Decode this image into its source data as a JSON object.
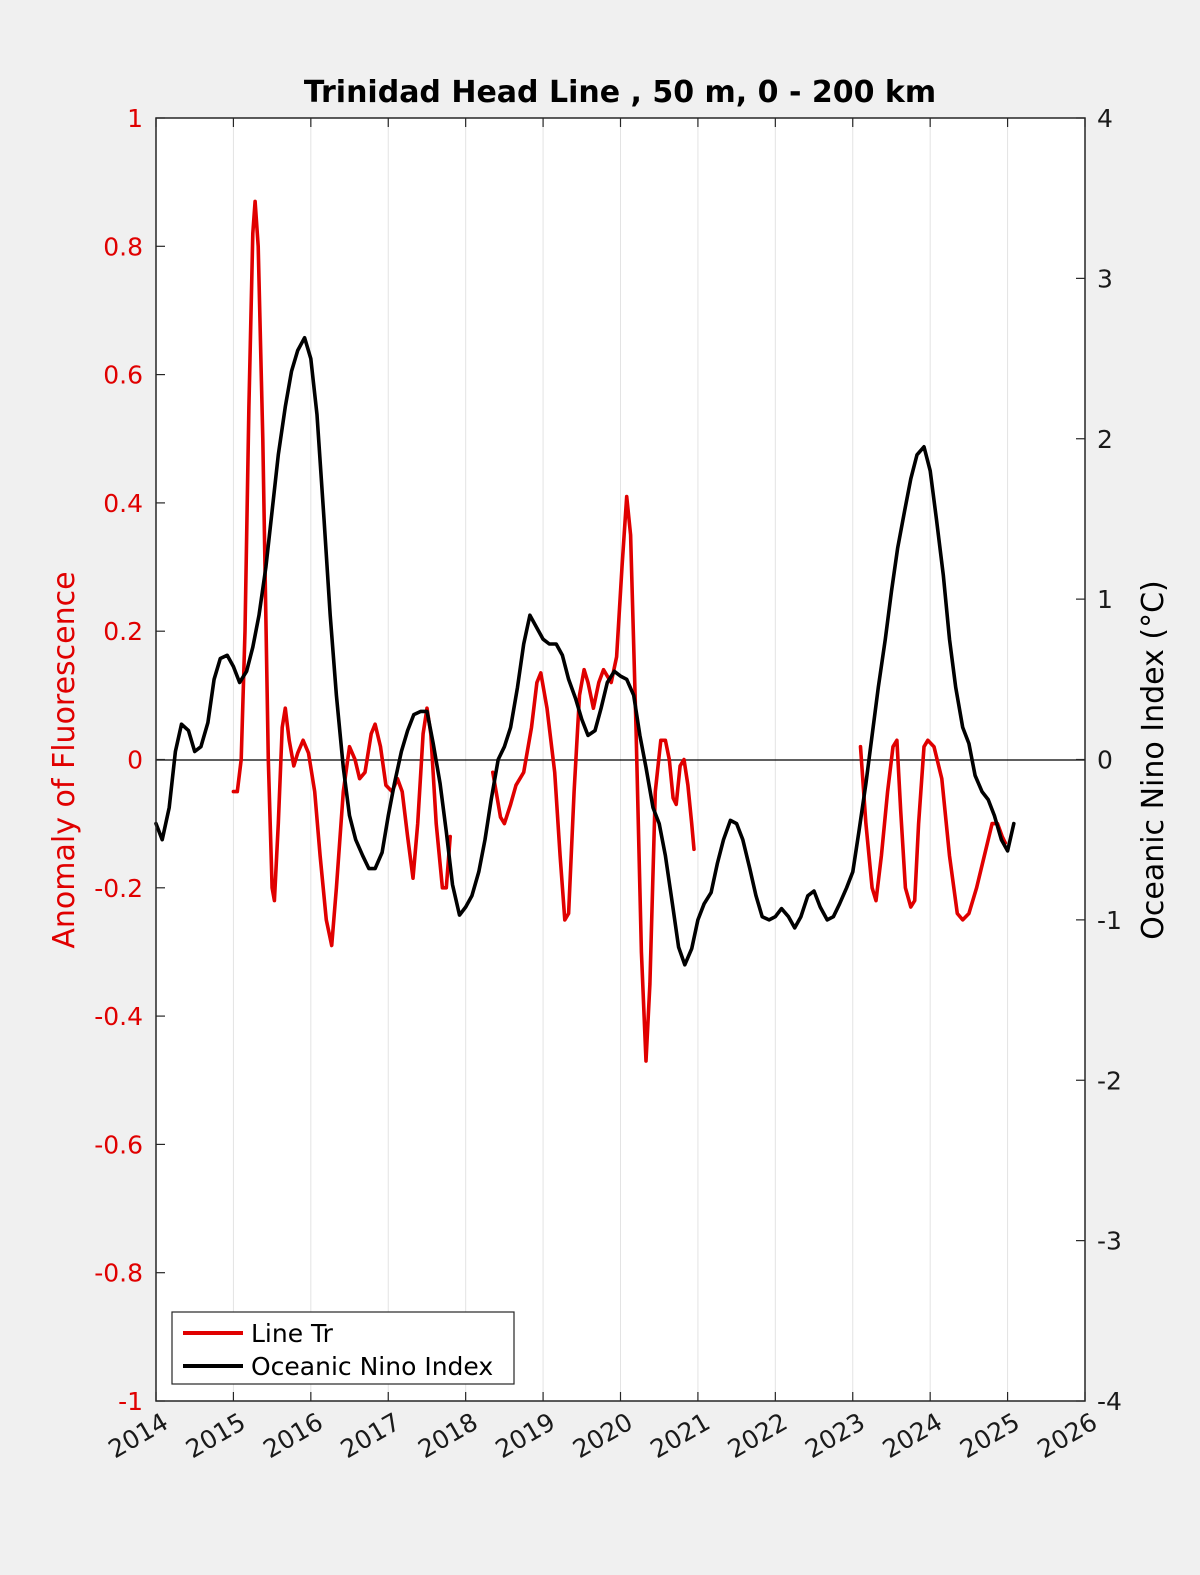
{
  "chart_data": {
    "type": "line",
    "title": "Trinidad Head Line , 50 m, 0 - 200 km",
    "ylabel_left": "Anomaly of Fluorescence",
    "ylabel_right": "Oceanic Nino Index (°C)",
    "xlim": [
      2014,
      2026
    ],
    "ylim_left": [
      -1,
      1
    ],
    "ylim_right": [
      -4,
      4
    ],
    "x_ticks": [
      "2014",
      "2015",
      "2016",
      "2017",
      "2018",
      "2019",
      "2020",
      "2021",
      "2022",
      "2023",
      "2024",
      "2025",
      "2026"
    ],
    "y_left_ticks": [
      "1",
      "0.8",
      "0.6",
      "0.4",
      "0.2",
      "0",
      "-0.2",
      "-0.4",
      "-0.6",
      "-0.8",
      "-1"
    ],
    "y_right_ticks": [
      "4",
      "3",
      "2",
      "1",
      "0",
      "-1",
      "-2",
      "-3",
      "-4"
    ],
    "grid": "vertical",
    "zero_line": true,
    "legend_position": "bottom-left",
    "colors": {
      "line_tr": "#e00000",
      "oni": "#000000",
      "left_axis": "#e00000"
    },
    "series": [
      {
        "name": "Line Tr",
        "axis": "left",
        "segments": [
          [
            [
              2015.0,
              -0.05
            ],
            [
              2015.05,
              -0.05
            ],
            [
              2015.1,
              0.0
            ],
            [
              2015.15,
              0.2
            ],
            [
              2015.2,
              0.55
            ],
            [
              2015.25,
              0.82
            ],
            [
              2015.28,
              0.87
            ],
            [
              2015.32,
              0.8
            ],
            [
              2015.38,
              0.5
            ],
            [
              2015.45,
              0.0
            ],
            [
              2015.5,
              -0.2
            ],
            [
              2015.53,
              -0.22
            ],
            [
              2015.58,
              -0.1
            ],
            [
              2015.63,
              0.05
            ],
            [
              2015.67,
              0.08
            ],
            [
              2015.72,
              0.03
            ],
            [
              2015.78,
              -0.01
            ],
            [
              2015.83,
              0.01
            ],
            [
              2015.9,
              0.03
            ],
            [
              2015.97,
              0.01
            ],
            [
              2016.05,
              -0.05
            ],
            [
              2016.12,
              -0.15
            ],
            [
              2016.2,
              -0.25
            ],
            [
              2016.27,
              -0.29
            ],
            [
              2016.33,
              -0.2
            ],
            [
              2016.42,
              -0.05
            ],
            [
              2016.5,
              0.02
            ],
            [
              2016.57,
              0.0
            ],
            [
              2016.63,
              -0.03
            ],
            [
              2016.7,
              -0.02
            ],
            [
              2016.78,
              0.04
            ],
            [
              2016.83,
              0.055
            ],
            [
              2016.9,
              0.02
            ],
            [
              2016.97,
              -0.04
            ],
            [
              2017.05,
              -0.05
            ],
            [
              2017.12,
              -0.03
            ],
            [
              2017.18,
              -0.05
            ],
            [
              2017.25,
              -0.12
            ],
            [
              2017.32,
              -0.185
            ],
            [
              2017.38,
              -0.1
            ],
            [
              2017.45,
              0.04
            ],
            [
              2017.5,
              0.08
            ],
            [
              2017.55,
              0.04
            ],
            [
              2017.62,
              -0.1
            ],
            [
              2017.7,
              -0.2
            ],
            [
              2017.75,
              -0.2
            ],
            [
              2017.8,
              -0.12
            ]
          ],
          [
            [
              2018.35,
              -0.02
            ],
            [
              2018.45,
              -0.09
            ],
            [
              2018.5,
              -0.1
            ],
            [
              2018.58,
              -0.07
            ],
            [
              2018.65,
              -0.04
            ],
            [
              2018.75,
              -0.02
            ],
            [
              2018.85,
              0.05
            ],
            [
              2018.92,
              0.12
            ],
            [
              2018.97,
              0.135
            ],
            [
              2019.05,
              0.08
            ],
            [
              2019.15,
              -0.02
            ],
            [
              2019.22,
              -0.15
            ],
            [
              2019.28,
              -0.25
            ],
            [
              2019.33,
              -0.24
            ],
            [
              2019.4,
              -0.05
            ],
            [
              2019.47,
              0.1
            ],
            [
              2019.53,
              0.14
            ],
            [
              2019.58,
              0.12
            ],
            [
              2019.65,
              0.08
            ],
            [
              2019.72,
              0.12
            ],
            [
              2019.78,
              0.14
            ],
            [
              2019.83,
              0.13
            ],
            [
              2019.88,
              0.12
            ],
            [
              2019.95,
              0.16
            ],
            [
              2020.02,
              0.3
            ],
            [
              2020.08,
              0.41
            ],
            [
              2020.13,
              0.35
            ],
            [
              2020.2,
              0.05
            ],
            [
              2020.27,
              -0.3
            ],
            [
              2020.33,
              -0.47
            ],
            [
              2020.38,
              -0.35
            ],
            [
              2020.45,
              -0.05
            ],
            [
              2020.52,
              0.03
            ],
            [
              2020.58,
              0.03
            ],
            [
              2020.63,
              0.0
            ],
            [
              2020.68,
              -0.06
            ],
            [
              2020.72,
              -0.07
            ],
            [
              2020.77,
              -0.01
            ],
            [
              2020.82,
              0.0
            ],
            [
              2020.87,
              -0.04
            ],
            [
              2020.92,
              -0.1
            ],
            [
              2020.95,
              -0.14
            ]
          ],
          [
            [
              2023.1,
              0.02
            ],
            [
              2023.17,
              -0.1
            ],
            [
              2023.25,
              -0.2
            ],
            [
              2023.3,
              -0.22
            ],
            [
              2023.37,
              -0.15
            ],
            [
              2023.45,
              -0.05
            ],
            [
              2023.52,
              0.02
            ],
            [
              2023.57,
              0.03
            ],
            [
              2023.62,
              -0.08
            ],
            [
              2023.68,
              -0.2
            ],
            [
              2023.75,
              -0.23
            ],
            [
              2023.8,
              -0.22
            ],
            [
              2023.85,
              -0.1
            ],
            [
              2023.92,
              0.02
            ],
            [
              2023.97,
              0.03
            ],
            [
              2024.05,
              0.02
            ],
            [
              2024.15,
              -0.03
            ],
            [
              2024.25,
              -0.15
            ],
            [
              2024.35,
              -0.24
            ],
            [
              2024.42,
              -0.25
            ],
            [
              2024.5,
              -0.24
            ],
            [
              2024.6,
              -0.2
            ],
            [
              2024.72,
              -0.14
            ],
            [
              2024.8,
              -0.1
            ],
            [
              2024.87,
              -0.1
            ],
            [
              2024.93,
              -0.12
            ],
            [
              2024.97,
              -0.13
            ]
          ]
        ]
      },
      {
        "name": "Oceanic Nino Index",
        "axis": "right",
        "points": [
          [
            2014.0,
            -0.4
          ],
          [
            2014.08,
            -0.5
          ],
          [
            2014.17,
            -0.3
          ],
          [
            2014.25,
            0.05
          ],
          [
            2014.33,
            0.22
          ],
          [
            2014.42,
            0.18
          ],
          [
            2014.5,
            0.05
          ],
          [
            2014.58,
            0.08
          ],
          [
            2014.67,
            0.23
          ],
          [
            2014.75,
            0.5
          ],
          [
            2014.83,
            0.63
          ],
          [
            2014.92,
            0.65
          ],
          [
            2015.0,
            0.58
          ],
          [
            2015.08,
            0.48
          ],
          [
            2015.17,
            0.55
          ],
          [
            2015.25,
            0.7
          ],
          [
            2015.33,
            0.9
          ],
          [
            2015.42,
            1.2
          ],
          [
            2015.5,
            1.55
          ],
          [
            2015.58,
            1.9
          ],
          [
            2015.67,
            2.2
          ],
          [
            2015.75,
            2.42
          ],
          [
            2015.83,
            2.55
          ],
          [
            2015.92,
            2.63
          ],
          [
            2016.0,
            2.5
          ],
          [
            2016.08,
            2.15
          ],
          [
            2016.17,
            1.5
          ],
          [
            2016.25,
            0.9
          ],
          [
            2016.33,
            0.4
          ],
          [
            2016.42,
            -0.05
          ],
          [
            2016.5,
            -0.35
          ],
          [
            2016.58,
            -0.5
          ],
          [
            2016.67,
            -0.6
          ],
          [
            2016.75,
            -0.68
          ],
          [
            2016.83,
            -0.68
          ],
          [
            2016.92,
            -0.58
          ],
          [
            2017.0,
            -0.35
          ],
          [
            2017.08,
            -0.15
          ],
          [
            2017.17,
            0.05
          ],
          [
            2017.25,
            0.18
          ],
          [
            2017.33,
            0.28
          ],
          [
            2017.42,
            0.3
          ],
          [
            2017.5,
            0.3
          ],
          [
            2017.58,
            0.1
          ],
          [
            2017.67,
            -0.15
          ],
          [
            2017.75,
            -0.45
          ],
          [
            2017.83,
            -0.78
          ],
          [
            2017.92,
            -0.97
          ],
          [
            2018.0,
            -0.92
          ],
          [
            2018.08,
            -0.85
          ],
          [
            2018.17,
            -0.7
          ],
          [
            2018.25,
            -0.5
          ],
          [
            2018.33,
            -0.25
          ],
          [
            2018.42,
            0.0
          ],
          [
            2018.5,
            0.08
          ],
          [
            2018.58,
            0.2
          ],
          [
            2018.67,
            0.45
          ],
          [
            2018.75,
            0.72
          ],
          [
            2018.83,
            0.9
          ],
          [
            2018.92,
            0.82
          ],
          [
            2019.0,
            0.75
          ],
          [
            2019.08,
            0.72
          ],
          [
            2019.17,
            0.72
          ],
          [
            2019.25,
            0.65
          ],
          [
            2019.33,
            0.5
          ],
          [
            2019.42,
            0.38
          ],
          [
            2019.5,
            0.25
          ],
          [
            2019.58,
            0.15
          ],
          [
            2019.67,
            0.18
          ],
          [
            2019.75,
            0.32
          ],
          [
            2019.83,
            0.48
          ],
          [
            2019.92,
            0.55
          ],
          [
            2020.0,
            0.52
          ],
          [
            2020.08,
            0.5
          ],
          [
            2020.17,
            0.4
          ],
          [
            2020.25,
            0.15
          ],
          [
            2020.33,
            -0.05
          ],
          [
            2020.42,
            -0.3
          ],
          [
            2020.5,
            -0.4
          ],
          [
            2020.58,
            -0.6
          ],
          [
            2020.67,
            -0.9
          ],
          [
            2020.75,
            -1.17
          ],
          [
            2020.83,
            -1.28
          ],
          [
            2020.92,
            -1.18
          ],
          [
            2021.0,
            -1.0
          ],
          [
            2021.08,
            -0.9
          ],
          [
            2021.17,
            -0.83
          ],
          [
            2021.25,
            -0.65
          ],
          [
            2021.33,
            -0.5
          ],
          [
            2021.42,
            -0.38
          ],
          [
            2021.5,
            -0.4
          ],
          [
            2021.58,
            -0.5
          ],
          [
            2021.67,
            -0.68
          ],
          [
            2021.75,
            -0.85
          ],
          [
            2021.83,
            -0.98
          ],
          [
            2021.92,
            -1.0
          ],
          [
            2022.0,
            -0.98
          ],
          [
            2022.08,
            -0.93
          ],
          [
            2022.17,
            -0.98
          ],
          [
            2022.25,
            -1.05
          ],
          [
            2022.33,
            -0.98
          ],
          [
            2022.42,
            -0.85
          ],
          [
            2022.5,
            -0.82
          ],
          [
            2022.58,
            -0.92
          ],
          [
            2022.67,
            -1.0
          ],
          [
            2022.75,
            -0.98
          ],
          [
            2022.83,
            -0.9
          ],
          [
            2022.92,
            -0.8
          ],
          [
            2023.0,
            -0.7
          ],
          [
            2023.08,
            -0.45
          ],
          [
            2023.17,
            -0.15
          ],
          [
            2023.25,
            0.15
          ],
          [
            2023.33,
            0.45
          ],
          [
            2023.42,
            0.75
          ],
          [
            2023.5,
            1.05
          ],
          [
            2023.58,
            1.32
          ],
          [
            2023.67,
            1.55
          ],
          [
            2023.75,
            1.75
          ],
          [
            2023.83,
            1.9
          ],
          [
            2023.92,
            1.95
          ],
          [
            2024.0,
            1.8
          ],
          [
            2024.08,
            1.5
          ],
          [
            2024.17,
            1.15
          ],
          [
            2024.25,
            0.75
          ],
          [
            2024.33,
            0.45
          ],
          [
            2024.42,
            0.2
          ],
          [
            2024.5,
            0.1
          ],
          [
            2024.58,
            -0.1
          ],
          [
            2024.67,
            -0.2
          ],
          [
            2024.75,
            -0.25
          ],
          [
            2024.83,
            -0.35
          ],
          [
            2024.92,
            -0.5
          ],
          [
            2025.0,
            -0.57
          ],
          [
            2025.08,
            -0.4
          ]
        ]
      }
    ]
  }
}
